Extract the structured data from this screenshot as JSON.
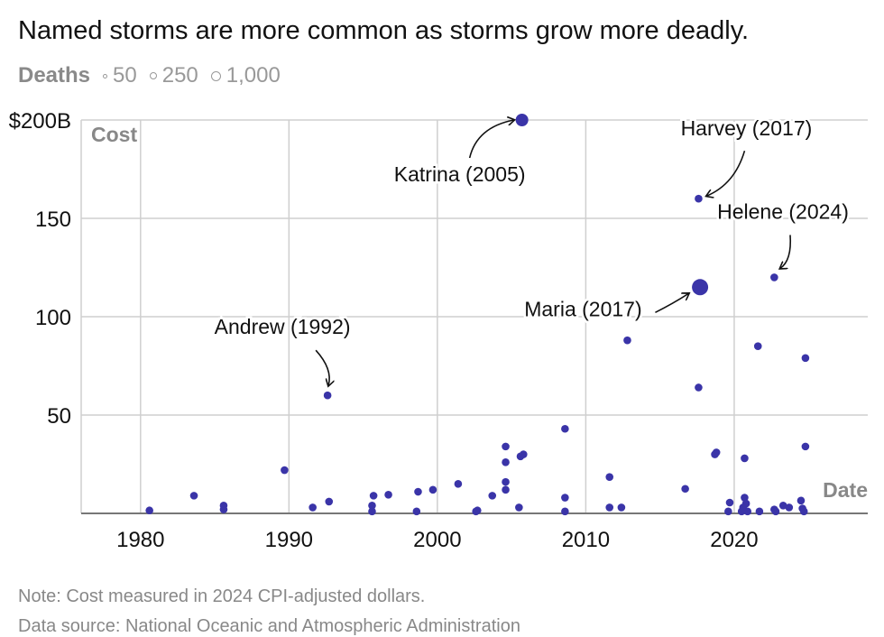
{
  "subtitle": "Named storms are more common as storms grow more deadly.",
  "legend": {
    "title": "Deaths",
    "items": [
      {
        "label": "50",
        "value": 50
      },
      {
        "label": "250",
        "value": 250
      },
      {
        "label": "1,000",
        "value": 1000
      }
    ]
  },
  "notes": {
    "note": "Note: Cost measured in 2024 CPI-adjusted dollars.",
    "source": "Data source: National Oceanic and Atmospheric Administration"
  },
  "colors": {
    "point": "#3a34a8",
    "grid": "#cfcfcf",
    "axis": "#777777",
    "label": "#888888"
  },
  "chart_data": {
    "type": "scatter",
    "xlabel": "Date",
    "ylabel": "Cost",
    "xlim": [
      1976,
      2029
    ],
    "ylim": [
      0,
      200
    ],
    "x_ticks": [
      1980,
      1990,
      2000,
      2010,
      2020
    ],
    "y_ticks": [
      50,
      100,
      150,
      200
    ],
    "y_tick_labels": [
      "50",
      "100",
      "150",
      "$200B"
    ],
    "grid": true,
    "annotations": [
      {
        "text": "Katrina (2005)",
        "x": 2005.7,
        "y": 200
      },
      {
        "text": "Harvey (2017)",
        "x": 2017.6,
        "y": 160
      },
      {
        "text": "Helene (2024)",
        "x": 2022.8,
        "y": 120
      },
      {
        "text": "Maria (2017)",
        "x": 2017.6,
        "y": 115
      },
      {
        "text": "Andrew (1992)",
        "x": 1992.6,
        "y": 60
      }
    ],
    "points": [
      {
        "x": 1980.6,
        "y": 1.5,
        "size": "small"
      },
      {
        "x": 1983.6,
        "y": 9,
        "size": "small"
      },
      {
        "x": 1985.6,
        "y": 4,
        "size": "small"
      },
      {
        "x": 1985.6,
        "y": 2,
        "size": "small"
      },
      {
        "x": 1989.7,
        "y": 22,
        "size": "small"
      },
      {
        "x": 1991.6,
        "y": 3,
        "size": "small"
      },
      {
        "x": 1992.6,
        "y": 60,
        "size": "small"
      },
      {
        "x": 1992.7,
        "y": 6,
        "size": "small"
      },
      {
        "x": 1995.7,
        "y": 9,
        "size": "small"
      },
      {
        "x": 1995.6,
        "y": 4,
        "size": "small"
      },
      {
        "x": 1995.6,
        "y": 1,
        "size": "small"
      },
      {
        "x": 1996.7,
        "y": 9.5,
        "size": "small"
      },
      {
        "x": 1998.6,
        "y": 1,
        "size": "small"
      },
      {
        "x": 1998.7,
        "y": 11,
        "size": "small"
      },
      {
        "x": 1999.7,
        "y": 12,
        "size": "small"
      },
      {
        "x": 2001.4,
        "y": 15,
        "size": "small"
      },
      {
        "x": 2002.6,
        "y": 1,
        "size": "small"
      },
      {
        "x": 2002.7,
        "y": 1.5,
        "size": "small"
      },
      {
        "x": 2003.7,
        "y": 9,
        "size": "small"
      },
      {
        "x": 2004.6,
        "y": 34,
        "size": "small"
      },
      {
        "x": 2004.6,
        "y": 26,
        "size": "small"
      },
      {
        "x": 2004.6,
        "y": 16,
        "size": "small"
      },
      {
        "x": 2004.6,
        "y": 12,
        "size": "small"
      },
      {
        "x": 2005.5,
        "y": 3,
        "size": "small"
      },
      {
        "x": 2005.6,
        "y": 29,
        "size": "small"
      },
      {
        "x": 2005.7,
        "y": 200,
        "size": "medium"
      },
      {
        "x": 2005.8,
        "y": 30,
        "size": "small"
      },
      {
        "x": 2008.6,
        "y": 43,
        "size": "small"
      },
      {
        "x": 2008.6,
        "y": 8,
        "size": "small"
      },
      {
        "x": 2008.6,
        "y": 1,
        "size": "small"
      },
      {
        "x": 2011.6,
        "y": 18.5,
        "size": "small"
      },
      {
        "x": 2011.6,
        "y": 3,
        "size": "small"
      },
      {
        "x": 2012.4,
        "y": 3,
        "size": "small"
      },
      {
        "x": 2012.8,
        "y": 88,
        "size": "small"
      },
      {
        "x": 2016.7,
        "y": 12.5,
        "size": "small"
      },
      {
        "x": 2017.6,
        "y": 160,
        "size": "small"
      },
      {
        "x": 2017.6,
        "y": 64,
        "size": "small"
      },
      {
        "x": 2017.7,
        "y": 115,
        "size": "large"
      },
      {
        "x": 2018.7,
        "y": 30,
        "size": "small"
      },
      {
        "x": 2018.8,
        "y": 31,
        "size": "small"
      },
      {
        "x": 2019.7,
        "y": 5.5,
        "size": "small"
      },
      {
        "x": 2019.6,
        "y": 1,
        "size": "small"
      },
      {
        "x": 2020.5,
        "y": 1,
        "size": "small"
      },
      {
        "x": 2020.6,
        "y": 3,
        "size": "small"
      },
      {
        "x": 2020.7,
        "y": 28,
        "size": "small"
      },
      {
        "x": 2020.7,
        "y": 8,
        "size": "small"
      },
      {
        "x": 2020.8,
        "y": 5,
        "size": "small"
      },
      {
        "x": 2020.9,
        "y": 1,
        "size": "small"
      },
      {
        "x": 2021.6,
        "y": 85,
        "size": "small"
      },
      {
        "x": 2021.7,
        "y": 1,
        "size": "small"
      },
      {
        "x": 2022.7,
        "y": 120,
        "size": "small"
      },
      {
        "x": 2022.7,
        "y": 2,
        "size": "small"
      },
      {
        "x": 2022.8,
        "y": 1,
        "size": "small"
      },
      {
        "x": 2023.3,
        "y": 4,
        "size": "small"
      },
      {
        "x": 2023.7,
        "y": 3,
        "size": "small"
      },
      {
        "x": 2024.5,
        "y": 6.5,
        "size": "small"
      },
      {
        "x": 2024.6,
        "y": 2.5,
        "size": "small"
      },
      {
        "x": 2024.7,
        "y": 1,
        "size": "small"
      },
      {
        "x": 2024.8,
        "y": 79,
        "size": "small"
      },
      {
        "x": 2024.8,
        "y": 34,
        "size": "small"
      }
    ]
  }
}
